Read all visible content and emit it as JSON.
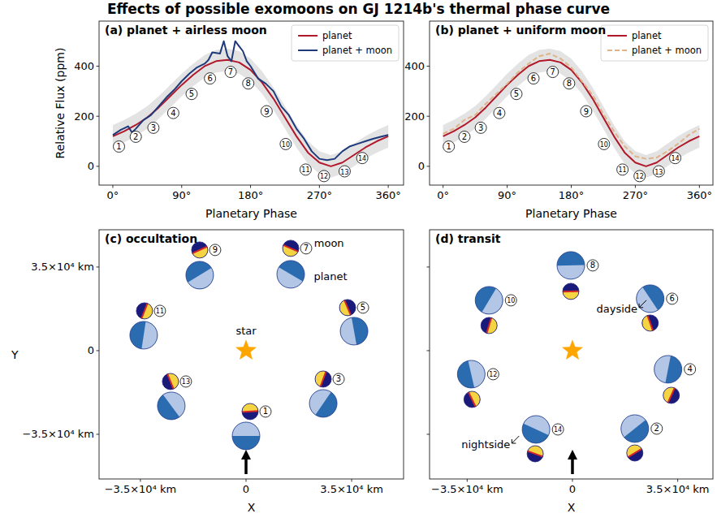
{
  "title": "Effects of possible exomoons on GJ 1214b's thermal phase curve",
  "chart_data": [
    {
      "type": "line",
      "title": "(a) planet + airless moon",
      "x_label": "Planetary Phase",
      "y_label": "Relative Flux (ppm)",
      "xlim": [
        -18,
        380
      ],
      "ylim": [
        -75,
        580
      ],
      "xticks": [
        {
          "value": 0,
          "label": "0°"
        },
        {
          "value": 90,
          "label": "90°"
        },
        {
          "value": 180,
          "label": "180°"
        },
        {
          "value": 270,
          "label": "270°"
        },
        {
          "value": 360,
          "label": "360°"
        }
      ],
      "yticks": [
        0,
        200,
        400
      ],
      "legend": "upper right",
      "series": [
        {
          "name": "planet",
          "color": "#b2182b",
          "x": [
            0,
            15,
            30,
            45,
            60,
            75,
            90,
            105,
            120,
            135,
            150,
            165,
            180,
            195,
            210,
            225,
            240,
            255,
            270,
            285,
            300,
            315,
            330,
            345,
            360
          ],
          "values": [
            120,
            140,
            165,
            195,
            235,
            280,
            325,
            365,
            400,
            420,
            425,
            415,
            385,
            335,
            270,
            195,
            120,
            55,
            15,
            0,
            15,
            45,
            75,
            100,
            120
          ],
          "errors": [
            45,
            45,
            45,
            45,
            45,
            45,
            45,
            45,
            45,
            45,
            45,
            45,
            45,
            45,
            45,
            45,
            45,
            45,
            45,
            45,
            45,
            45,
            45,
            45,
            45
          ]
        },
        {
          "name": "planet + moon",
          "color": "#1f3a7a",
          "x": [
            0,
            10,
            20,
            25,
            30,
            40,
            50,
            60,
            70,
            80,
            90,
            100,
            110,
            120,
            125,
            130,
            140,
            145,
            150,
            155,
            160,
            165,
            170,
            175,
            180,
            190,
            200,
            210,
            220,
            230,
            240,
            250,
            260,
            270,
            280,
            290,
            300,
            310,
            320,
            330,
            340,
            350,
            360
          ],
          "values": [
            125,
            145,
            160,
            135,
            150,
            185,
            205,
            240,
            275,
            305,
            340,
            370,
            395,
            410,
            425,
            455,
            450,
            500,
            440,
            420,
            500,
            480,
            460,
            420,
            400,
            350,
            330,
            300,
            240,
            205,
            150,
            110,
            60,
            30,
            25,
            30,
            60,
            80,
            90,
            100,
            110,
            118,
            125
          ]
        }
      ],
      "annotations": [
        {
          "text": "1",
          "x": 8,
          "y": 79
        },
        {
          "text": "2",
          "x": 30,
          "y": 118
        },
        {
          "text": "3",
          "x": 53,
          "y": 154
        },
        {
          "text": "4",
          "x": 79,
          "y": 213
        },
        {
          "text": "5",
          "x": 103,
          "y": 289
        },
        {
          "text": "6",
          "x": 127,
          "y": 351
        },
        {
          "text": "7",
          "x": 154,
          "y": 377
        },
        {
          "text": "8",
          "x": 177,
          "y": 331
        },
        {
          "text": "9",
          "x": 201,
          "y": 220
        },
        {
          "text": "10",
          "x": 226,
          "y": 89
        },
        {
          "text": "11",
          "x": 252,
          "y": -13
        },
        {
          "text": "12",
          "x": 276,
          "y": -39
        },
        {
          "text": "13",
          "x": 303,
          "y": -20
        },
        {
          "text": "14",
          "x": 326,
          "y": 33
        }
      ]
    },
    {
      "type": "line",
      "title": "(b) planet + uniform moon",
      "x_label": "Planetary Phase",
      "xlim": [
        -19,
        379
      ],
      "ylim": [
        -75,
        580
      ],
      "xticks": [
        {
          "value": 0,
          "label": "0°"
        },
        {
          "value": 90,
          "label": "90°"
        },
        {
          "value": 180,
          "label": "180°"
        },
        {
          "value": 270,
          "label": "270°"
        },
        {
          "value": 360,
          "label": "360°"
        }
      ],
      "yticks": [
        0,
        200,
        400
      ],
      "legend": "upper right",
      "series": [
        {
          "name": "planet",
          "color": "#b2182b",
          "x": [
            0,
            15,
            30,
            45,
            60,
            75,
            90,
            105,
            120,
            135,
            150,
            165,
            180,
            195,
            210,
            225,
            240,
            255,
            270,
            285,
            300,
            315,
            330,
            345,
            360
          ],
          "values": [
            120,
            140,
            165,
            195,
            235,
            280,
            325,
            365,
            400,
            420,
            425,
            415,
            385,
            335,
            270,
            195,
            120,
            55,
            15,
            0,
            15,
            45,
            75,
            100,
            120
          ],
          "errors": [
            45,
            45,
            45,
            45,
            45,
            45,
            45,
            45,
            45,
            45,
            45,
            45,
            45,
            45,
            45,
            45,
            45,
            45,
            45,
            45,
            45,
            45,
            45,
            45,
            45
          ]
        },
        {
          "name": "planet + moon",
          "color": "#dfb48a",
          "line_style": "dashed",
          "x": [
            0,
            15,
            30,
            45,
            60,
            75,
            90,
            105,
            120,
            135,
            150,
            165,
            180,
            195,
            210,
            225,
            240,
            255,
            270,
            285,
            300,
            315,
            330,
            345,
            360
          ],
          "values": [
            130,
            150,
            185,
            205,
            250,
            290,
            330,
            375,
            410,
            440,
            450,
            430,
            395,
            340,
            285,
            210,
            140,
            80,
            40,
            30,
            35,
            60,
            90,
            125,
            150
          ]
        }
      ],
      "annotations": [
        {
          "text": "1",
          "x": 8,
          "y": 79
        },
        {
          "text": "2",
          "x": 30,
          "y": 118
        },
        {
          "text": "3",
          "x": 53,
          "y": 154
        },
        {
          "text": "4",
          "x": 79,
          "y": 213
        },
        {
          "text": "5",
          "x": 103,
          "y": 289
        },
        {
          "text": "6",
          "x": 127,
          "y": 351
        },
        {
          "text": "7",
          "x": 154,
          "y": 377
        },
        {
          "text": "8",
          "x": 177,
          "y": 331
        },
        {
          "text": "9",
          "x": 201,
          "y": 220
        },
        {
          "text": "10",
          "x": 226,
          "y": 89
        },
        {
          "text": "11",
          "x": 252,
          "y": -13
        },
        {
          "text": "12",
          "x": 276,
          "y": -39
        },
        {
          "text": "13",
          "x": 303,
          "y": -20
        },
        {
          "text": "14",
          "x": 326,
          "y": 33
        }
      ]
    },
    {
      "type": "scatter",
      "title": "(c) occultation",
      "x_label": "X",
      "y_label": "Y",
      "xlim": [
        -48700,
        52200
      ],
      "ylim": [
        -53700,
        50600
      ],
      "xticks": [
        {
          "value": -35000,
          "label": "−3.5×10⁴ km"
        },
        0,
        {
          "value": 35000,
          "label": "3.5×10⁴ km"
        }
      ],
      "yticks": [
        {
          "value": -35000,
          "label": "−3.5×10⁴ km"
        },
        0,
        {
          "value": 35000,
          "label": "3.5×10⁴ km"
        }
      ],
      "star": {
        "x": 0,
        "y": 0
      },
      "series": [
        {
          "color": "#2b6cb0",
          "x": [
            0,
            25575,
            35800,
            14800,
            -15350,
            -33920,
            -24770
          ],
          "values": [
            -35680,
            -22090,
            8150,
            31950,
            31600,
            6450,
            -23100
          ]
        },
        {
          "color": "#1a1a7a",
          "x": [
            1346,
            25575,
            33650,
            14800,
            -15350,
            -33650,
            -25040
          ],
          "values": [
            -25480,
            -11890,
            18010,
            42820,
            42140,
            16650,
            -12910
          ]
        }
      ],
      "point_labels": [
        "1",
        "3",
        "5",
        "7",
        "9",
        "11",
        "13"
      ],
      "annotations": [
        {
          "text": "moon",
          "x": 27500,
          "y": 43500
        },
        {
          "text": "planet",
          "x": 28000,
          "y": 29600
        },
        {
          "text": "star",
          "x": 0,
          "y": 6800
        }
      ]
    },
    {
      "type": "scatter",
      "title": "(d) transit",
      "x_label": "X",
      "tick_labels": "x",
      "xlim": [
        -47500,
        46700
      ],
      "ylim": [
        -53700,
        50600
      ],
      "xticks": [
        {
          "value": -35000,
          "label": "−3.5×10⁴ km"
        },
        0,
        {
          "value": 35000,
          "label": "3.5×10⁴ km"
        }
      ],
      "yticks": [
        -35000,
        0,
        35000
      ],
      "star": {
        "x": 0,
        "y": 0
      },
      "series": [
        {
          "color": "#2b6cb0",
          "x": [
            20730,
            31770,
            25840,
            -540,
            -27730,
            -33650,
            -12110
          ],
          "values": [
            -32620,
            -7800,
            21750,
            35680,
            21070,
            -9850,
            -32960
          ]
        },
        {
          "color": "#1a1a7a",
          "x": [
            20730,
            32850,
            25840,
            -540,
            -27730,
            -33380,
            -12380
          ],
          "values": [
            -42820,
            -18690,
            11550,
            24810,
            10530,
            -20390,
            -43160
          ]
        }
      ],
      "point_labels": [
        "2",
        "4",
        "6",
        "8",
        "10",
        "12",
        "14"
      ],
      "annotations": [
        {
          "text": "dayside",
          "x": 14800,
          "y": 16000
        },
        {
          "text": "nightside",
          "x": -28800,
          "y": -40800
        }
      ]
    }
  ]
}
